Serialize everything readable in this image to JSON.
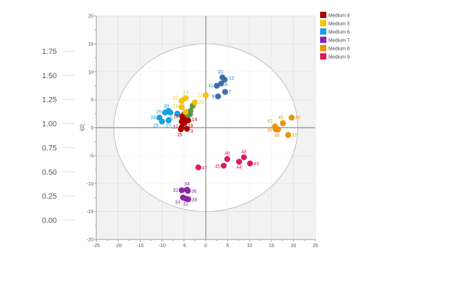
{
  "chart_data": {
    "type": "scatter",
    "title": "",
    "xlabel": "",
    "ylabel": "t[2]",
    "xlim": [
      -25,
      25
    ],
    "ylim": [
      -20,
      20
    ],
    "x_ticks": [
      -25,
      -20,
      -15,
      -10,
      -5,
      0,
      5,
      10,
      15,
      20,
      25
    ],
    "y_ticks": [
      -20,
      -15,
      -10,
      -5,
      0,
      5,
      10,
      15,
      20
    ],
    "grid": true,
    "ellipse": {
      "rx": 21,
      "ry": 15
    },
    "legend_position": "top-right",
    "side_axis": {
      "ticks": [
        "1.75",
        "1.50",
        "1.25",
        "1.00",
        "0.75",
        "0.50",
        "0.25",
        "0.00"
      ]
    },
    "series": [
      {
        "name": "",
        "color": "#3c6fb0",
        "in_legend": false,
        "points": [
          {
            "label": "10",
            "x": 3.8,
            "y": 9.0
          },
          {
            "label": "12",
            "x": 4.3,
            "y": 8.6
          },
          {
            "label": "8",
            "x": 3.5,
            "y": 7.9
          },
          {
            "label": "11",
            "x": 2.5,
            "y": 7.5
          },
          {
            "label": "7",
            "x": 4.4,
            "y": 6.4
          },
          {
            "label": "9",
            "x": 2.8,
            "y": 5.6
          }
        ]
      },
      {
        "name": "",
        "color": "#5b9b45",
        "in_legend": false,
        "points": [
          {
            "label": "",
            "x": -3.0,
            "y": 3.9
          },
          {
            "label": "",
            "x": -3.5,
            "y": 3.0
          },
          {
            "label": "",
            "x": -5.0,
            "y": 2.4
          },
          {
            "label": "",
            "x": -3.6,
            "y": 2.4
          },
          {
            "label": "",
            "x": -4.3,
            "y": 2.0
          }
        ]
      },
      {
        "name": "Medium 4",
        "color": "#b00000",
        "in_legend": true,
        "points": [
          {
            "label": "16",
            "x": -5.4,
            "y": 2.0
          },
          {
            "label": "",
            "x": -5.0,
            "y": 1.5
          },
          {
            "label": "14",
            "x": -4.0,
            "y": 1.3
          },
          {
            "label": "",
            "x": -5.5,
            "y": 1.1
          },
          {
            "label": "18",
            "x": -4.9,
            "y": 0.8
          },
          {
            "label": "17",
            "x": -5.5,
            "y": 0.1
          },
          {
            "label": "15",
            "x": -5.7,
            "y": -0.3
          },
          {
            "label": "3",
            "x": -4.3,
            "y": -0.2
          }
        ]
      },
      {
        "name": "Medium 5",
        "color": "#f5c400",
        "in_legend": true,
        "points": [
          {
            "label": "21",
            "x": 0.0,
            "y": 5.8
          },
          {
            "label": "24",
            "x": -4.6,
            "y": 5.3
          },
          {
            "label": "22",
            "x": -5.5,
            "y": 4.8
          },
          {
            "label": "20",
            "x": -2.5,
            "y": 4.5
          },
          {
            "label": "19",
            "x": -5.5,
            "y": 3.7
          },
          {
            "label": "",
            "x": -4.6,
            "y": 2.8
          }
        ]
      },
      {
        "name": "Medium 6",
        "color": "#14a0e6",
        "in_legend": true,
        "points": [
          {
            "label": "30",
            "x": -8.5,
            "y": 3.0
          },
          {
            "label": "26",
            "x": -9.3,
            "y": 2.7
          },
          {
            "label": "25",
            "x": -8.1,
            "y": 2.7
          },
          {
            "label": "",
            "x": -6.5,
            "y": 2.5
          },
          {
            "label": "28",
            "x": -10.6,
            "y": 1.8
          },
          {
            "label": "27",
            "x": -8.5,
            "y": 1.3
          },
          {
            "label": "29",
            "x": -10.0,
            "y": 1.1
          }
        ]
      },
      {
        "name": "Medium 7",
        "color": "#8e24aa",
        "in_legend": true,
        "points": [
          {
            "label": "32",
            "x": -5.5,
            "y": -11.2
          },
          {
            "label": "34",
            "x": -4.3,
            "y": -11.1
          },
          {
            "label": "36",
            "x": -4.1,
            "y": -11.3
          },
          {
            "label": "33",
            "x": -5.2,
            "y": -12.5
          },
          {
            "label": "31",
            "x": -4.6,
            "y": -12.7
          },
          {
            "label": "35",
            "x": -4.0,
            "y": -12.8
          }
        ]
      },
      {
        "name": "Medium 8",
        "color": "#f39200",
        "in_legend": true,
        "points": [
          {
            "label": "40",
            "x": 19.6,
            "y": 1.8
          },
          {
            "label": "42",
            "x": 17.6,
            "y": 0.8
          },
          {
            "label": "41",
            "x": 15.8,
            "y": 0.2
          },
          {
            "label": "38",
            "x": 16.0,
            "y": -0.3
          },
          {
            "label": "39",
            "x": 16.5,
            "y": -0.3
          },
          {
            "label": "37",
            "x": 18.8,
            "y": -1.3
          }
        ]
      },
      {
        "name": "Medium 9",
        "color": "#e0195f",
        "in_legend": true,
        "points": [
          {
            "label": "47",
            "x": -1.7,
            "y": -7.1
          },
          {
            "label": "46",
            "x": 4.9,
            "y": -5.6
          },
          {
            "label": "45",
            "x": 4.1,
            "y": -6.8
          },
          {
            "label": "44",
            "x": 7.6,
            "y": -6.1
          },
          {
            "label": "48",
            "x": 8.7,
            "y": -5.3
          },
          {
            "label": "43",
            "x": 10.1,
            "y": -6.4
          }
        ]
      }
    ]
  }
}
